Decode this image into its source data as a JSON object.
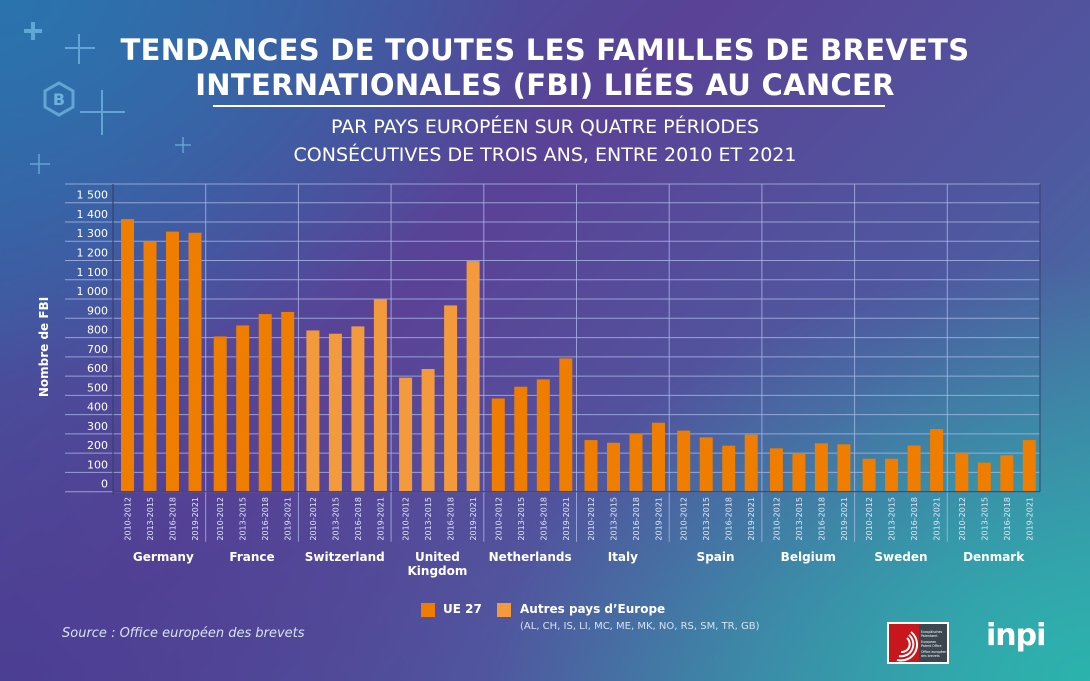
{
  "title_line1": "TENDANCES DE TOUTES LES FAMILLES DE BREVETS",
  "title_line2": "INTERNATIONALES (FBI) LIÉES AU CANCER",
  "subtitle_line1": "PAR PAYS EUROPÉEN SUR QUATRE PÉRIODES",
  "subtitle_line2": "CONSÉCUTIVES DE TROIS ANS, ENTRE 2010 ET 2021",
  "source": "Source :  Office européen des brevets",
  "logos": {
    "epo": "Europäisches Patentamt European Patent Office Office européen des brevets",
    "inpi": "inpi",
    "badge": "B"
  },
  "colors": {
    "ue27": "#ef7d00",
    "others": "#f29a3c",
    "grid": "#a9b7e6"
  },
  "legend": {
    "ue27": "UE 27",
    "others": "Autres pays d’Europe",
    "others_note": "(AL, CH, IS, LI, MC, ME, MK, NO, RS, SM, TR, GB)"
  },
  "chart_data": {
    "type": "bar",
    "title": "TENDANCES DE TOUTES LES FAMILLES DE BREVETS INTERNATIONALES (FBI) LIÉES AU CANCER",
    "ylabel": "Nombre de FBI",
    "ylim": [
      0,
      1500
    ],
    "yticks": [
      "0",
      "100",
      "200",
      "300",
      "400",
      "500",
      "600",
      "700",
      "800",
      "900",
      "1 000",
      "1 100",
      "1 200",
      "1 300",
      "1 400",
      "1 500"
    ],
    "grid": true,
    "legend_position": "bottom",
    "periods": [
      "2010-2012",
      "2013-2015",
      "2016-2018",
      "2019-2021"
    ],
    "groups": [
      {
        "country": "Germany",
        "label": [
          "Germany"
        ],
        "group": "ue27",
        "values": [
          1415,
          1298,
          1350,
          1344
        ]
      },
      {
        "country": "France",
        "label": [
          "France"
        ],
        "group": "ue27",
        "values": [
          806,
          863,
          922,
          933
        ]
      },
      {
        "country": "Switzerland",
        "label": [
          "Switzerland"
        ],
        "group": "others",
        "values": [
          837,
          820,
          858,
          1000
        ]
      },
      {
        "country": "United Kingdom",
        "label": [
          "United",
          "Kingdom"
        ],
        "group": "others",
        "values": [
          592,
          637,
          967,
          1197
        ]
      },
      {
        "country": "Netherlands",
        "label": [
          "Netherlands"
        ],
        "group": "ue27",
        "values": [
          484,
          545,
          583,
          692
        ]
      },
      {
        "country": "Italy",
        "label": [
          "Italy"
        ],
        "group": "ue27",
        "values": [
          268,
          254,
          303,
          358
        ]
      },
      {
        "country": "Spain",
        "label": [
          "Spain"
        ],
        "group": "ue27",
        "values": [
          317,
          282,
          239,
          296
        ]
      },
      {
        "country": "Belgium",
        "label": [
          "Belgium"
        ],
        "group": "ue27",
        "values": [
          225,
          196,
          251,
          246
        ]
      },
      {
        "country": "Sweden",
        "label": [
          "Sweden"
        ],
        "group": "ue27",
        "values": [
          171,
          171,
          240,
          325
        ]
      },
      {
        "country": "Denmark",
        "label": [
          "Denmark"
        ],
        "group": "ue27",
        "values": [
          202,
          151,
          189,
          268
        ]
      }
    ]
  }
}
